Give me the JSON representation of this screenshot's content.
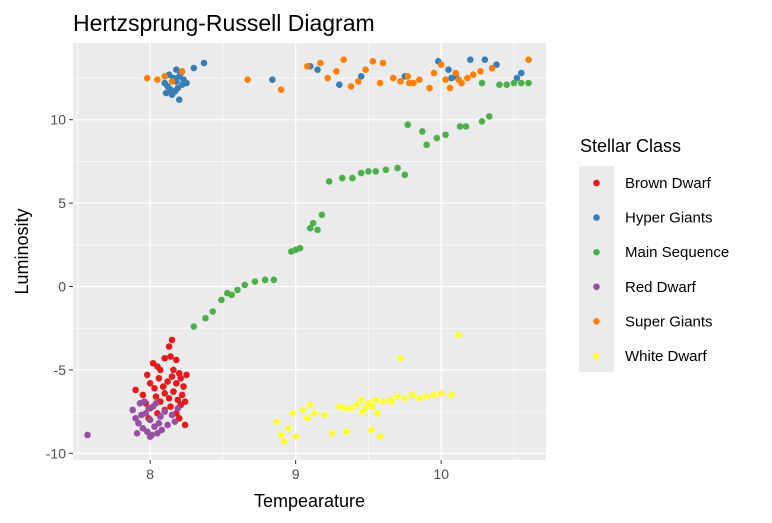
{
  "chart_data": {
    "type": "scatter",
    "title": "Hertzsprung-Russell Diagram",
    "xlabel": "Tempearature",
    "ylabel": "Luminosity",
    "xlim": [
      7.47,
      10.72
    ],
    "ylim": [
      -10.4,
      14.6
    ],
    "xticks": [
      8,
      9,
      10
    ],
    "yticks": [
      -10,
      -5,
      0,
      5,
      10
    ],
    "grid": true,
    "background": "#ebebeb",
    "legend": {
      "title": "Stellar Class",
      "position": "right"
    },
    "series": [
      {
        "name": "Brown Dwarf",
        "color": "#e41a1c",
        "points": [
          [
            8.02,
            -4.6
          ],
          [
            8.05,
            -4.8
          ],
          [
            8.07,
            -5.0
          ],
          [
            8.1,
            -4.3
          ],
          [
            8.13,
            -3.6
          ],
          [
            8.15,
            -3.2
          ],
          [
            8.18,
            -4.4
          ],
          [
            8.2,
            -5.2
          ],
          [
            7.98,
            -5.3
          ],
          [
            8.0,
            -5.8
          ],
          [
            8.03,
            -6.1
          ],
          [
            8.06,
            -5.5
          ],
          [
            8.09,
            -6.0
          ],
          [
            8.12,
            -5.7
          ],
          [
            8.15,
            -5.4
          ],
          [
            8.18,
            -5.8
          ],
          [
            8.21,
            -5.5
          ],
          [
            8.23,
            -6.0
          ],
          [
            8.04,
            -6.6
          ],
          [
            8.07,
            -6.9
          ],
          [
            8.1,
            -6.4
          ],
          [
            8.13,
            -6.7
          ],
          [
            8.16,
            -6.3
          ],
          [
            8.19,
            -6.8
          ],
          [
            8.22,
            -6.5
          ],
          [
            7.95,
            -6.5
          ],
          [
            7.97,
            -7.0
          ],
          [
            8.0,
            -7.3
          ],
          [
            8.05,
            -7.6
          ],
          [
            8.1,
            -7.4
          ],
          [
            8.14,
            -7.2
          ],
          [
            8.18,
            -7.6
          ],
          [
            8.21,
            -7.1
          ],
          [
            8.24,
            -6.9
          ],
          [
            7.9,
            -6.2
          ],
          [
            8.16,
            -5.0
          ],
          [
            8.14,
            -4.2
          ],
          [
            8.2,
            -7.9
          ],
          [
            8.25,
            -5.3
          ],
          [
            7.99,
            -7.9
          ],
          [
            8.24,
            -8.3
          ]
        ]
      },
      {
        "name": "Hyper Giants",
        "color": "#377eb8",
        "points": [
          [
            8.1,
            12.2
          ],
          [
            8.12,
            12.0
          ],
          [
            8.14,
            11.8
          ],
          [
            8.16,
            12.5
          ],
          [
            8.18,
            12.3
          ],
          [
            8.2,
            12.6
          ],
          [
            8.22,
            12.1
          ],
          [
            8.15,
            11.5
          ],
          [
            8.17,
            11.7
          ],
          [
            8.19,
            11.9
          ],
          [
            8.21,
            12.8
          ],
          [
            8.23,
            12.4
          ],
          [
            8.13,
            12.7
          ],
          [
            8.11,
            11.6
          ],
          [
            8.25,
            12.2
          ],
          [
            8.2,
            11.2
          ],
          [
            8.18,
            13.0
          ],
          [
            8.3,
            13.1
          ],
          [
            8.37,
            13.4
          ],
          [
            8.84,
            12.4
          ],
          [
            9.1,
            13.2
          ],
          [
            9.15,
            13.0
          ],
          [
            9.3,
            12.1
          ],
          [
            9.45,
            12.6
          ],
          [
            9.75,
            12.6
          ],
          [
            9.98,
            13.5
          ],
          [
            10.05,
            13.0
          ],
          [
            10.1,
            12.6
          ],
          [
            10.2,
            13.6
          ],
          [
            10.3,
            13.6
          ],
          [
            10.38,
            13.3
          ],
          [
            10.52,
            12.5
          ],
          [
            10.55,
            12.8
          ],
          [
            10.07,
            12.5
          ]
        ]
      },
      {
        "name": "Main Sequence",
        "color": "#4daf4a",
        "points": [
          [
            8.3,
            -2.4
          ],
          [
            8.38,
            -1.9
          ],
          [
            8.43,
            -1.5
          ],
          [
            8.49,
            -0.8
          ],
          [
            8.53,
            -0.4
          ],
          [
            8.56,
            -0.5
          ],
          [
            8.6,
            -0.2
          ],
          [
            8.65,
            0.1
          ],
          [
            8.72,
            0.3
          ],
          [
            8.79,
            0.4
          ],
          [
            8.85,
            0.4
          ],
          [
            8.97,
            2.1
          ],
          [
            9.0,
            2.2
          ],
          [
            9.03,
            2.3
          ],
          [
            9.1,
            3.5
          ],
          [
            9.12,
            3.8
          ],
          [
            9.15,
            3.4
          ],
          [
            9.18,
            4.3
          ],
          [
            9.23,
            6.3
          ],
          [
            9.32,
            6.5
          ],
          [
            9.39,
            6.5
          ],
          [
            9.45,
            6.8
          ],
          [
            9.5,
            6.9
          ],
          [
            9.55,
            6.9
          ],
          [
            9.62,
            7.0
          ],
          [
            9.7,
            7.1
          ],
          [
            9.75,
            6.7
          ],
          [
            9.77,
            9.7
          ],
          [
            9.87,
            9.3
          ],
          [
            9.9,
            8.5
          ],
          [
            9.97,
            8.9
          ],
          [
            10.03,
            9.1
          ],
          [
            10.13,
            9.6
          ],
          [
            10.17,
            9.6
          ],
          [
            10.28,
            9.9
          ],
          [
            10.33,
            10.2
          ],
          [
            10.28,
            12.2
          ],
          [
            10.4,
            12.1
          ],
          [
            10.45,
            12.1
          ],
          [
            10.5,
            12.2
          ],
          [
            10.55,
            12.2
          ],
          [
            10.6,
            12.2
          ]
        ]
      },
      {
        "name": "Red Dwarf",
        "color": "#984ea3",
        "points": [
          [
            7.57,
            -8.9
          ],
          [
            7.88,
            -7.4
          ],
          [
            7.9,
            -7.9
          ],
          [
            7.92,
            -8.2
          ],
          [
            7.93,
            -7.0
          ],
          [
            7.95,
            -8.5
          ],
          [
            7.97,
            -7.6
          ],
          [
            7.98,
            -8.7
          ],
          [
            8.0,
            -8.0
          ],
          [
            8.02,
            -7.2
          ],
          [
            8.03,
            -8.4
          ],
          [
            8.05,
            -8.8
          ],
          [
            8.07,
            -7.8
          ],
          [
            8.08,
            -8.6
          ],
          [
            8.1,
            -7.5
          ],
          [
            7.96,
            -6.9
          ],
          [
            7.99,
            -7.3
          ],
          [
            8.01,
            -8.9
          ],
          [
            8.04,
            -7.0
          ],
          [
            8.06,
            -8.2
          ],
          [
            7.91,
            -8.8
          ],
          [
            8.12,
            -8.3
          ],
          [
            8.15,
            -7.7
          ],
          [
            8.17,
            -8.1
          ],
          [
            8.19,
            -7.3
          ],
          [
            7.94,
            -7.7
          ],
          [
            8.0,
            -9.0
          ]
        ]
      },
      {
        "name": "Super Giants",
        "color": "#ff7f00",
        "points": [
          [
            7.98,
            12.5
          ],
          [
            8.05,
            12.4
          ],
          [
            8.1,
            12.6
          ],
          [
            8.15,
            12.3
          ],
          [
            8.22,
            12.9
          ],
          [
            8.67,
            12.4
          ],
          [
            8.9,
            11.8
          ],
          [
            9.08,
            13.2
          ],
          [
            9.17,
            13.4
          ],
          [
            9.22,
            12.5
          ],
          [
            9.28,
            12.9
          ],
          [
            9.33,
            13.6
          ],
          [
            9.38,
            12.0
          ],
          [
            9.43,
            12.3
          ],
          [
            9.48,
            13.0
          ],
          [
            9.53,
            13.5
          ],
          [
            9.6,
            13.4
          ],
          [
            9.67,
            12.5
          ],
          [
            9.72,
            12.3
          ],
          [
            9.77,
            12.6
          ],
          [
            9.81,
            12.2
          ],
          [
            9.85,
            12.4
          ],
          [
            9.92,
            11.9
          ],
          [
            9.95,
            12.8
          ],
          [
            10.0,
            13.3
          ],
          [
            10.03,
            12.4
          ],
          [
            10.06,
            11.9
          ],
          [
            10.1,
            12.8
          ],
          [
            10.14,
            12.2
          ],
          [
            10.18,
            12.5
          ],
          [
            10.22,
            12.7
          ],
          [
            10.27,
            12.9
          ],
          [
            10.35,
            13.1
          ],
          [
            10.6,
            13.6
          ],
          [
            9.58,
            12.2
          ],
          [
            9.78,
            12.2
          ],
          [
            10.12,
            12.4
          ]
        ]
      },
      {
        "name": "White Dwarf",
        "color": "#ffff33",
        "points": [
          [
            8.87,
            -8.1
          ],
          [
            8.9,
            -8.9
          ],
          [
            8.92,
            -9.3
          ],
          [
            8.95,
            -8.5
          ],
          [
            8.98,
            -7.6
          ],
          [
            9.0,
            -9.0
          ],
          [
            9.05,
            -7.4
          ],
          [
            9.08,
            -7.9
          ],
          [
            9.1,
            -7.1
          ],
          [
            9.13,
            -7.6
          ],
          [
            9.2,
            -7.7
          ],
          [
            9.25,
            -8.8
          ],
          [
            9.3,
            -7.2
          ],
          [
            9.35,
            -8.7
          ],
          [
            9.38,
            -7.3
          ],
          [
            9.42,
            -7.1
          ],
          [
            9.45,
            -6.8
          ],
          [
            9.48,
            -7.3
          ],
          [
            9.5,
            -7.0
          ],
          [
            9.52,
            -8.6
          ],
          [
            9.55,
            -6.8
          ],
          [
            9.58,
            -9.0
          ],
          [
            9.6,
            -6.9
          ],
          [
            9.65,
            -6.8
          ],
          [
            9.7,
            -6.6
          ],
          [
            9.75,
            -6.7
          ],
          [
            9.8,
            -6.5
          ],
          [
            9.85,
            -6.7
          ],
          [
            9.9,
            -6.6
          ],
          [
            9.95,
            -6.5
          ],
          [
            10.0,
            -6.4
          ],
          [
            10.07,
            -6.5
          ],
          [
            10.12,
            -2.9
          ],
          [
            9.72,
            -4.3
          ],
          [
            9.46,
            -7.5
          ],
          [
            9.56,
            -7.6
          ],
          [
            9.66,
            -6.9
          ],
          [
            9.53,
            -7.2
          ],
          [
            9.34,
            -7.3
          ]
        ]
      }
    ]
  }
}
